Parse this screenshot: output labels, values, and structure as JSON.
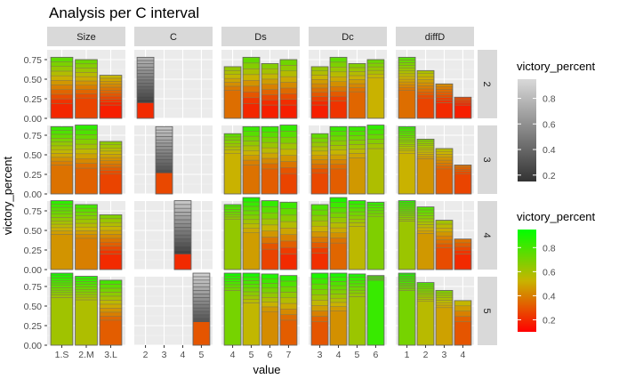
{
  "chart_data": {
    "type": "bar",
    "title": "Analysis per C interval",
    "xlabel": "value",
    "ylabel": "victory_percent",
    "ylim": [
      0,
      0.875
    ],
    "yticks": [
      0.0,
      0.25,
      0.5,
      0.75
    ],
    "yticklabels": [
      "0.00",
      "0.25",
      "0.50",
      "0.75"
    ],
    "grid": true,
    "column_facets": [
      "Size",
      "C",
      "Ds",
      "Dc",
      "diffD"
    ],
    "row_facets": [
      "2",
      "3",
      "4",
      "5"
    ],
    "panels": [
      {
        "col": "Size",
        "categories": [
          "1.S",
          "2.M",
          "3.L"
        ],
        "rows": {
          "2": {
            "values": [
              0.78,
              0.75,
              0.55
            ],
            "bottoms": [
              0.19,
              0.26,
              0.17
            ],
            "segments": [
              10,
              9,
              10
            ]
          },
          "3": {
            "values": [
              0.86,
              0.88,
              0.67
            ],
            "bottoms": [
              0.37,
              0.33,
              0.26
            ],
            "segments": [
              10,
              9,
              10
            ]
          },
          "4": {
            "values": [
              0.88,
              0.83,
              0.7
            ],
            "bottoms": [
              0.45,
              0.4,
              0.2
            ],
            "segments": [
              10,
              9,
              10
            ]
          },
          "5": {
            "values": [
              0.92,
              0.88,
              0.83
            ],
            "bottoms": [
              0.61,
              0.58,
              0.32
            ],
            "segments": [
              10,
              9,
              10
            ]
          }
        }
      },
      {
        "col": "C",
        "categories": [
          "2",
          "3",
          "4",
          "5"
        ],
        "rows": {
          "2": {
            "values": [
              0.78,
              null,
              null,
              null
            ],
            "bottoms": [
              0.2,
              null,
              null,
              null
            ],
            "segments": [
              14,
              0,
              0,
              0
            ]
          },
          "3": {
            "values": [
              null,
              0.86,
              null,
              null
            ],
            "bottoms": [
              null,
              0.27,
              null,
              null
            ],
            "segments": [
              0,
              14,
              0,
              0
            ]
          },
          "4": {
            "values": [
              null,
              null,
              0.88,
              null
            ],
            "bottoms": [
              null,
              null,
              0.2,
              null
            ],
            "segments": [
              0,
              0,
              14,
              0
            ]
          },
          "5": {
            "values": [
              null,
              null,
              null,
              0.92
            ],
            "bottoms": [
              null,
              null,
              null,
              0.3
            ],
            "segments": [
              0,
              0,
              0,
              14
            ]
          }
        }
      },
      {
        "col": "Ds",
        "categories": [
          "4",
          "5",
          "6",
          "7"
        ],
        "rows": {
          "2": {
            "values": [
              0.66,
              0.78,
              0.7,
              0.75
            ],
            "bottoms": [
              0.36,
              0.19,
              0.17,
              0.17
            ],
            "segments": [
              6,
              8,
              8,
              8
            ]
          },
          "3": {
            "values": [
              0.77,
              0.86,
              0.86,
              0.88
            ],
            "bottoms": [
              0.52,
              0.37,
              0.32,
              0.26
            ],
            "segments": [
              6,
              8,
              8,
              8
            ]
          },
          "4": {
            "values": [
              0.83,
              0.92,
              0.88,
              0.86
            ],
            "bottoms": [
              0.64,
              0.47,
              0.26,
              0.2
            ],
            "segments": [
              6,
              8,
              8,
              8
            ]
          },
          "5": {
            "values": [
              0.92,
              0.92,
              0.91,
              0.89
            ],
            "bottoms": [
              0.7,
              0.54,
              0.43,
              0.32
            ],
            "segments": [
              6,
              8,
              8,
              8
            ]
          }
        }
      },
      {
        "col": "Dc",
        "categories": [
          "3",
          "4",
          "5",
          "6"
        ],
        "rows": {
          "2": {
            "values": [
              0.66,
              0.78,
              0.7,
              0.75
            ],
            "bottoms": [
              0.17,
              0.22,
              0.34,
              0.52
            ],
            "segments": [
              9,
              9,
              7,
              5
            ]
          },
          "3": {
            "values": [
              0.77,
              0.86,
              0.86,
              0.88
            ],
            "bottoms": [
              0.27,
              0.32,
              0.46,
              0.58
            ],
            "segments": [
              9,
              9,
              7,
              5
            ]
          },
          "4": {
            "values": [
              0.83,
              0.92,
              0.88,
              0.86
            ],
            "bottoms": [
              0.21,
              0.34,
              0.55,
              0.68
            ],
            "segments": [
              9,
              9,
              7,
              5
            ]
          },
          "5": {
            "values": [
              0.92,
              0.92,
              0.91,
              0.89
            ],
            "bottoms": [
              0.3,
              0.44,
              0.62,
              0.83
            ],
            "segments": [
              9,
              9,
              7,
              5
            ]
          }
        }
      },
      {
        "col": "diffD",
        "categories": [
          "1",
          "2",
          "3",
          "4"
        ],
        "rows": {
          "2": {
            "values": [
              0.78,
              0.61,
              0.44,
              0.27
            ],
            "bottoms": [
              0.36,
              0.26,
              0.2,
              0.17
            ],
            "segments": [
              12,
              9,
              7,
              4
            ]
          },
          "3": {
            "values": [
              0.86,
              0.7,
              0.58,
              0.37
            ],
            "bottoms": [
              0.52,
              0.45,
              0.32,
              0.26
            ],
            "segments": [
              12,
              9,
              7,
              4
            ]
          },
          "4": {
            "values": [
              0.88,
              0.8,
              0.63,
              0.39
            ],
            "bottoms": [
              0.62,
              0.46,
              0.28,
              0.2
            ],
            "segments": [
              12,
              9,
              7,
              4
            ]
          },
          "5": {
            "values": [
              0.92,
              0.8,
              0.7,
              0.57
            ],
            "bottoms": [
              0.7,
              0.56,
              0.48,
              0.3
            ],
            "segments": [
              12,
              9,
              7,
              4
            ]
          }
        }
      }
    ],
    "legend_grey": {
      "title": "victory_percent",
      "ticks": [
        "0.8",
        "0.6",
        "0.4",
        "0.2"
      ],
      "tick_values": [
        0.8,
        0.6,
        0.4,
        0.2
      ],
      "range": [
        0.15,
        0.95
      ],
      "colors": [
        "#d9d9d9",
        "#333333"
      ]
    },
    "legend_color": {
      "title": "victory_percent",
      "ticks": [
        "0.8",
        "0.6",
        "0.4",
        "0.2"
      ],
      "tick_values": [
        0.8,
        0.6,
        0.4,
        0.2
      ],
      "range": [
        0.1,
        0.95
      ],
      "colors": [
        "#00ff00",
        "#c8b400",
        "#ff0000"
      ]
    },
    "legend_position": "right"
  }
}
